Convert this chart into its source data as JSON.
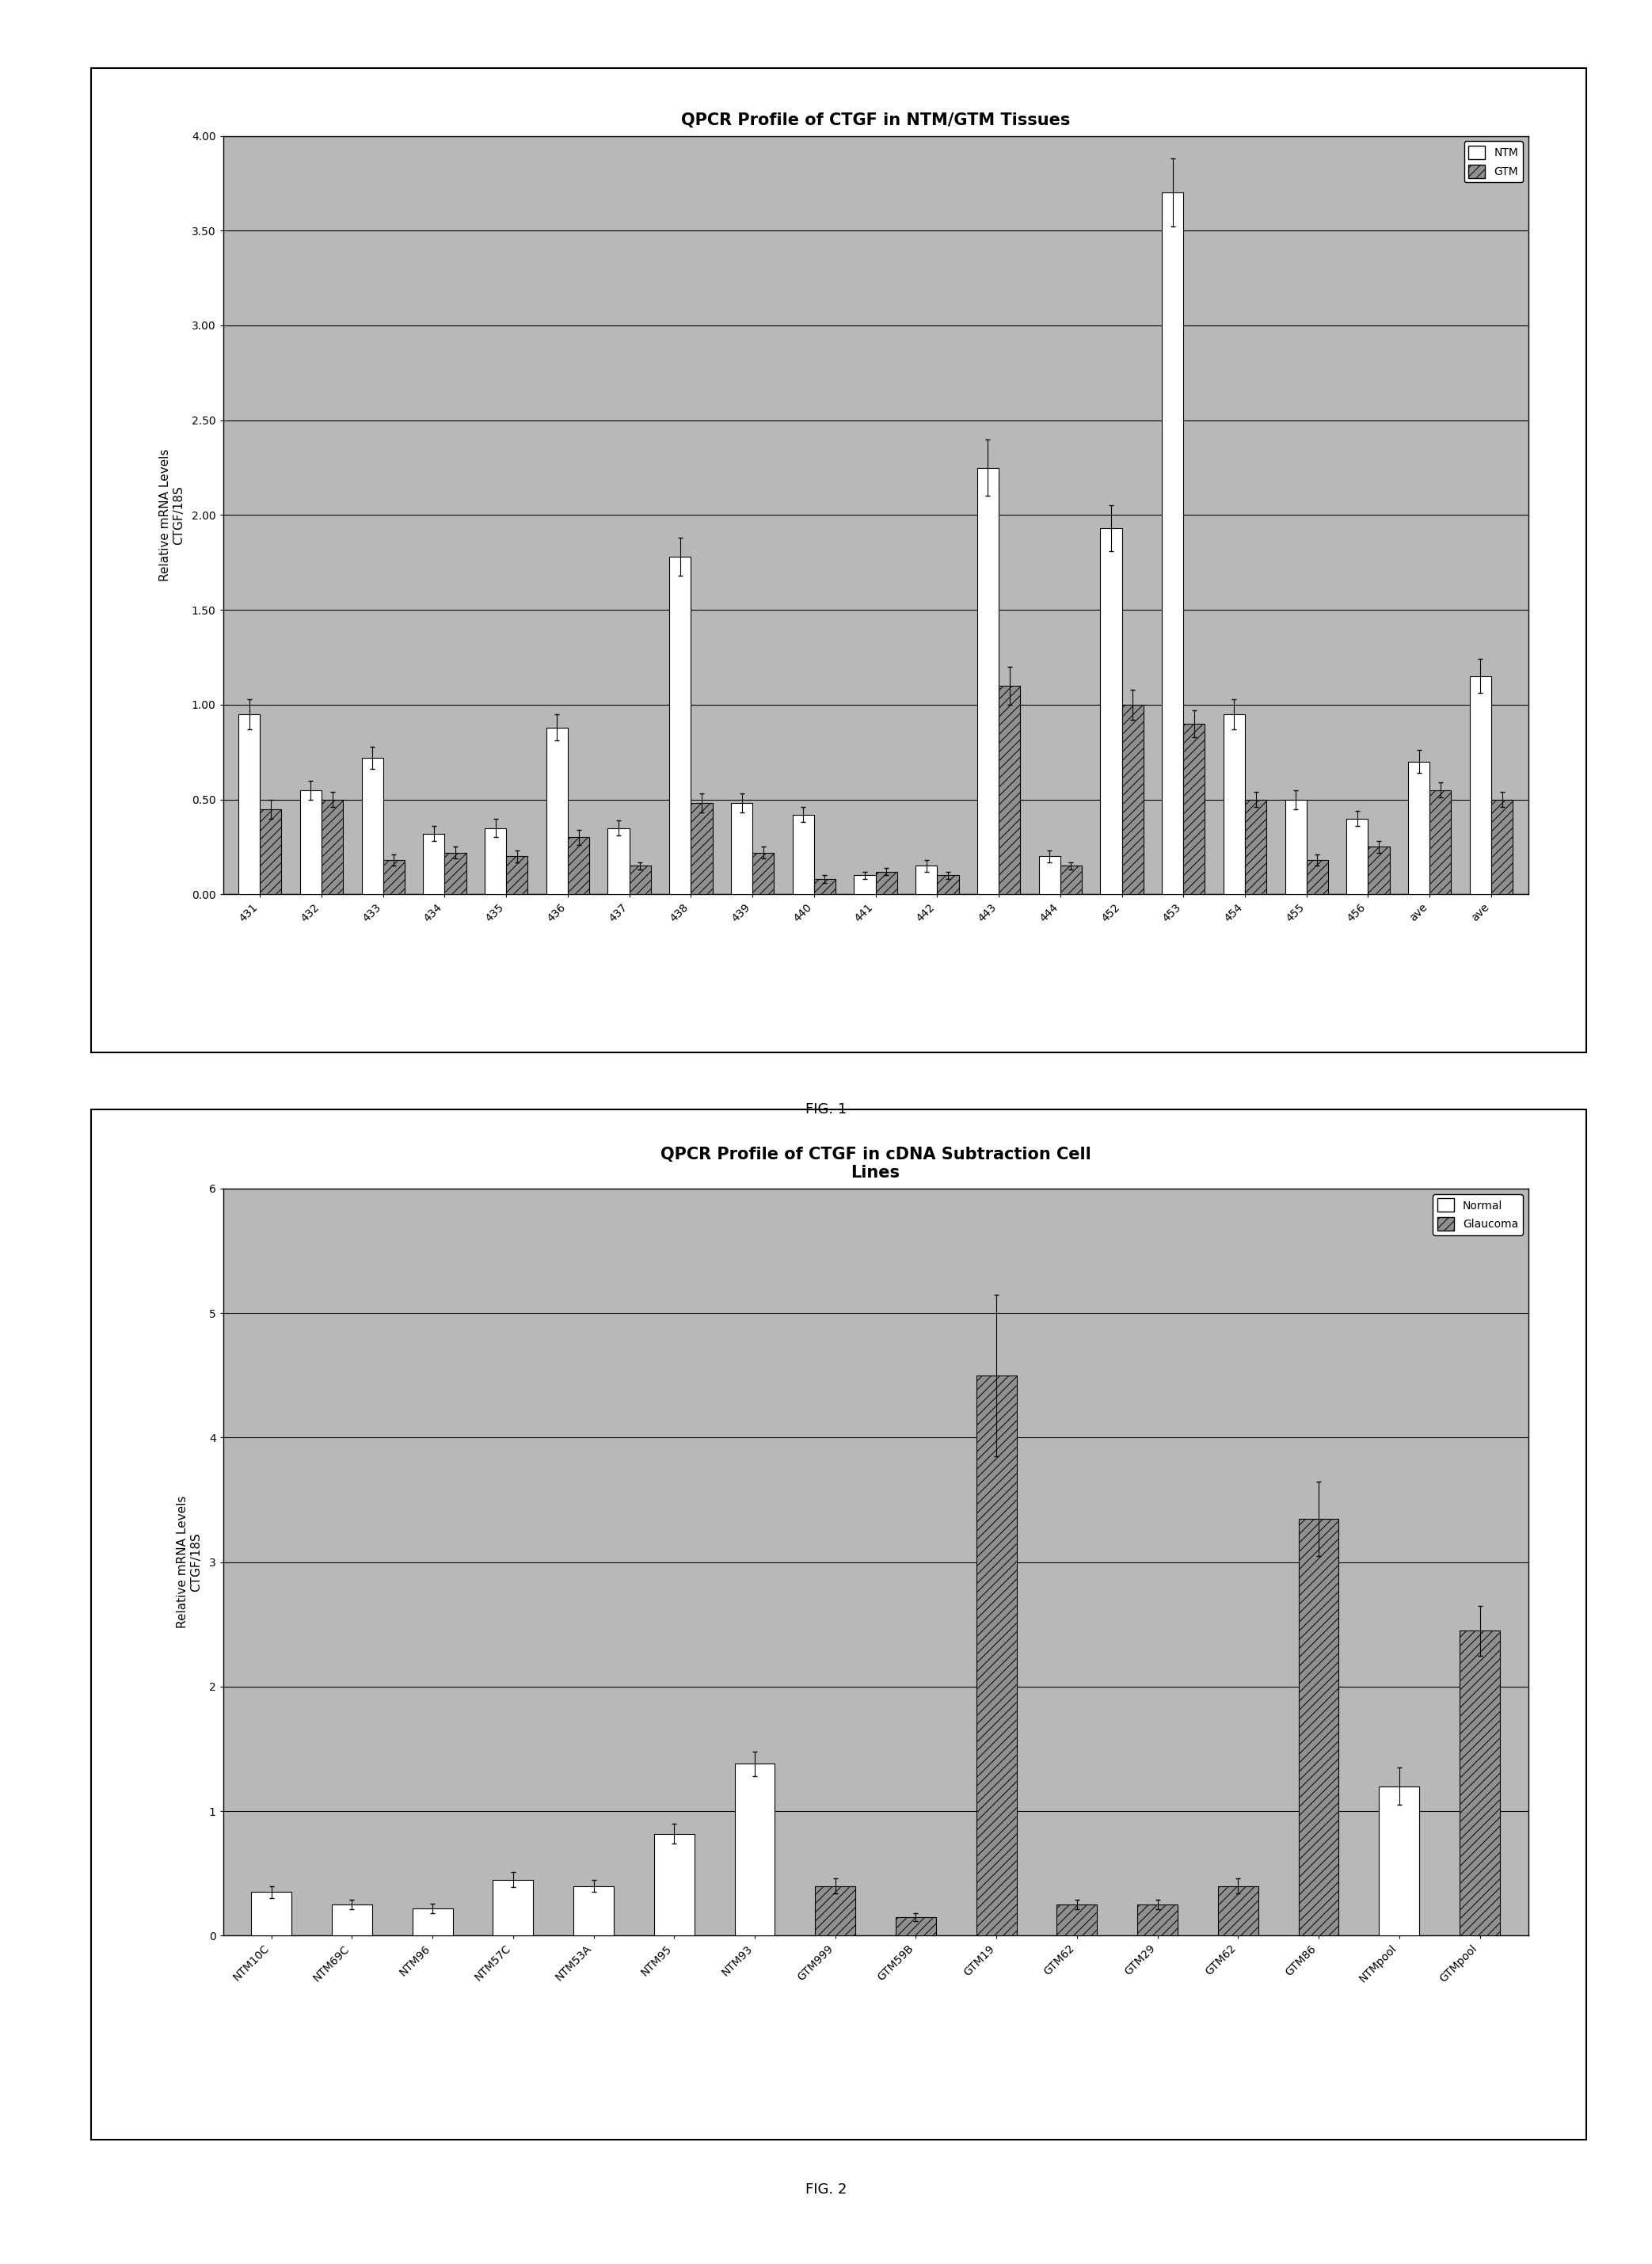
{
  "fig1": {
    "title": "QPCR Profile of CTGF in NTM/GTM Tissues",
    "ylabel": "Relative mRNA Levels\nCTGF/18S",
    "ylim": [
      0,
      4.0
    ],
    "yticks": [
      0.0,
      0.5,
      1.0,
      1.5,
      2.0,
      2.5,
      3.0,
      3.5,
      4.0
    ],
    "ytick_labels": [
      "0.00",
      "0.50",
      "1.00",
      "1.50",
      "2.00",
      "2.50",
      "3.00",
      "3.50",
      "4.00"
    ],
    "categories": [
      "431",
      "432",
      "433",
      "434",
      "435",
      "436",
      "437",
      "438",
      "439",
      "440",
      "441",
      "442",
      "443",
      "444",
      "452",
      "453",
      "454",
      "455",
      "456",
      "ave",
      "ave"
    ],
    "ntm_values": [
      0.95,
      0.55,
      0.72,
      0.32,
      0.35,
      0.88,
      0.35,
      1.78,
      0.48,
      0.42,
      0.1,
      0.15,
      2.25,
      0.2,
      1.93,
      3.7,
      0.95,
      0.5,
      0.4,
      0.7,
      1.15
    ],
    "gtm_values": [
      0.45,
      0.5,
      0.18,
      0.22,
      0.2,
      0.3,
      0.15,
      0.48,
      0.22,
      0.08,
      0.12,
      0.1,
      1.1,
      0.15,
      1.0,
      0.9,
      0.5,
      0.18,
      0.25,
      0.55,
      0.5
    ],
    "ntm_errors": [
      0.08,
      0.05,
      0.06,
      0.04,
      0.05,
      0.07,
      0.04,
      0.1,
      0.05,
      0.04,
      0.02,
      0.03,
      0.15,
      0.03,
      0.12,
      0.18,
      0.08,
      0.05,
      0.04,
      0.06,
      0.09
    ],
    "gtm_errors": [
      0.05,
      0.04,
      0.03,
      0.03,
      0.03,
      0.04,
      0.02,
      0.05,
      0.03,
      0.02,
      0.02,
      0.02,
      0.1,
      0.02,
      0.08,
      0.07,
      0.04,
      0.03,
      0.03,
      0.04,
      0.04
    ],
    "legend_labels": [
      "NTM",
      "GTM"
    ],
    "bar_width": 0.35
  },
  "fig2": {
    "title": "QPCR Profile of CTGF in cDNA Subtraction Cell\nLines",
    "ylabel": "Relative mRNA Levels\nCTGF/18S",
    "ylim": [
      0,
      6
    ],
    "yticks": [
      0,
      1,
      2,
      3,
      4,
      5,
      6
    ],
    "ytick_labels": [
      "0",
      "1",
      "2",
      "3",
      "4",
      "5",
      "6"
    ],
    "categories": [
      "NTM10C",
      "NTM69C",
      "NTM96",
      "NTM57C",
      "NTM53A",
      "NTM95",
      "NTM93",
      "GTM999",
      "GTM59B",
      "GTM19",
      "GTM62",
      "GTM29",
      "GTM62",
      "GTM86",
      "NTMpool",
      "GTMpool"
    ],
    "bar_values": [
      0.35,
      0.25,
      0.22,
      0.45,
      0.4,
      0.82,
      1.38,
      0.4,
      0.15,
      4.5,
      0.25,
      0.25,
      0.4,
      3.35,
      1.2,
      2.45
    ],
    "bar_errors": [
      0.05,
      0.04,
      0.04,
      0.06,
      0.05,
      0.08,
      0.1,
      0.06,
      0.03,
      0.65,
      0.04,
      0.04,
      0.06,
      0.3,
      0.15,
      0.2
    ],
    "bar_colors": [
      "white",
      "white",
      "white",
      "white",
      "white",
      "white",
      "white",
      "gray",
      "gray",
      "gray",
      "gray",
      "gray",
      "gray",
      "gray",
      "white",
      "gray"
    ],
    "bar_hatches": [
      "",
      "",
      "",
      "",
      "",
      "",
      "",
      "///",
      "///",
      "///",
      "///",
      "///",
      "///",
      "///",
      "",
      "///"
    ],
    "legend_labels": [
      "Normal",
      "Glaucoma"
    ]
  },
  "fig1_caption": "FIG. 1",
  "fig2_caption": "FIG. 2",
  "plot_bg_color": "#b8b8b8",
  "hatch_bg_color": "#d0d0d0",
  "ntm_bar_color": "white",
  "gtm_bar_color": "#909090",
  "gtm_hatch": "///",
  "title_fontsize": 15,
  "axis_label_fontsize": 11,
  "tick_fontsize": 10,
  "legend_fontsize": 10,
  "caption_fontsize": 13
}
